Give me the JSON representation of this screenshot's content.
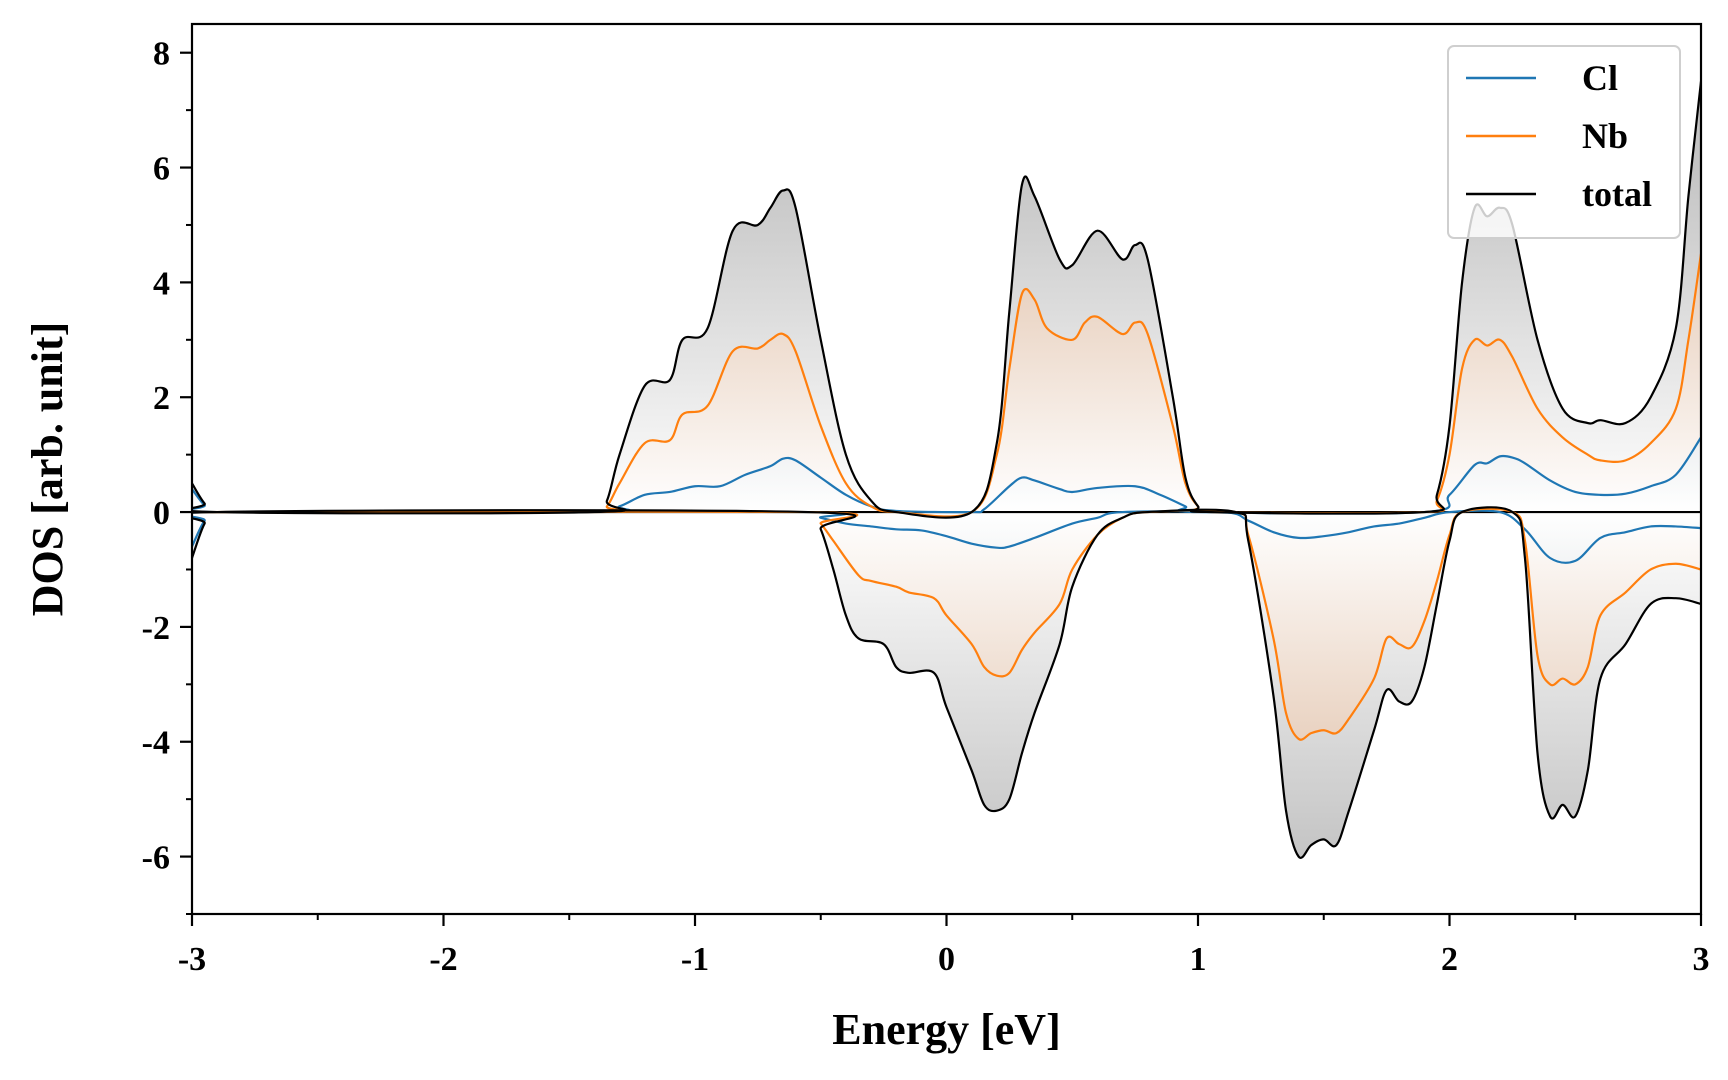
{
  "chart_data": {
    "type": "area",
    "title": "",
    "xlabel": "Energy [eV]",
    "ylabel": "DOS [arb. unit]",
    "xlim": [
      -3,
      3
    ],
    "ylim": [
      -7,
      8.5
    ],
    "x_ticks": [
      -3,
      -2,
      -1,
      0,
      1,
      2,
      3
    ],
    "x_tick_labels": [
      "-3",
      "-2",
      "-1",
      "0",
      "1",
      "2",
      "3"
    ],
    "y_ticks": [
      -6,
      -4,
      -2,
      0,
      2,
      4,
      6,
      8
    ],
    "y_tick_labels": [
      "-6",
      "-4",
      "-2",
      "0",
      "2",
      "4",
      "6",
      "8"
    ],
    "legend_position": "top-right",
    "grid": false,
    "series": [
      {
        "name": "Cl",
        "color": "#1f77b4",
        "up": [
          [
            -3.0,
            0.4
          ],
          [
            -2.95,
            0.12
          ],
          [
            -2.9,
            0.0
          ],
          [
            -1.4,
            0.0
          ],
          [
            -1.3,
            0.1
          ],
          [
            -1.2,
            0.3
          ],
          [
            -1.1,
            0.35
          ],
          [
            -1.0,
            0.45
          ],
          [
            -0.9,
            0.45
          ],
          [
            -0.8,
            0.65
          ],
          [
            -0.7,
            0.8
          ],
          [
            -0.65,
            0.93
          ],
          [
            -0.6,
            0.9
          ],
          [
            -0.5,
            0.6
          ],
          [
            -0.4,
            0.3
          ],
          [
            -0.3,
            0.1
          ],
          [
            -0.2,
            0.02
          ],
          [
            0.1,
            0.0
          ],
          [
            0.15,
            0.05
          ],
          [
            0.25,
            0.45
          ],
          [
            0.3,
            0.6
          ],
          [
            0.35,
            0.55
          ],
          [
            0.45,
            0.4
          ],
          [
            0.5,
            0.35
          ],
          [
            0.6,
            0.42
          ],
          [
            0.75,
            0.45
          ],
          [
            0.85,
            0.3
          ],
          [
            0.95,
            0.1
          ],
          [
            1.0,
            0.0
          ],
          [
            1.9,
            0.0
          ],
          [
            2.0,
            0.3
          ],
          [
            2.1,
            0.82
          ],
          [
            2.15,
            0.85
          ],
          [
            2.2,
            0.97
          ],
          [
            2.25,
            0.95
          ],
          [
            2.3,
            0.85
          ],
          [
            2.4,
            0.55
          ],
          [
            2.5,
            0.35
          ],
          [
            2.6,
            0.3
          ],
          [
            2.7,
            0.32
          ],
          [
            2.8,
            0.45
          ],
          [
            2.9,
            0.65
          ],
          [
            3.0,
            1.3
          ]
        ],
        "down": [
          [
            -3.0,
            -0.6
          ],
          [
            -2.95,
            -0.15
          ],
          [
            -2.9,
            0.0
          ],
          [
            -0.6,
            0.0
          ],
          [
            -0.5,
            -0.1
          ],
          [
            -0.4,
            -0.2
          ],
          [
            -0.3,
            -0.25
          ],
          [
            -0.2,
            -0.3
          ],
          [
            -0.1,
            -0.32
          ],
          [
            0.0,
            -0.42
          ],
          [
            0.1,
            -0.55
          ],
          [
            0.2,
            -0.62
          ],
          [
            0.25,
            -0.6
          ],
          [
            0.35,
            -0.45
          ],
          [
            0.5,
            -0.2
          ],
          [
            0.6,
            -0.1
          ],
          [
            0.7,
            0.0
          ],
          [
            1.1,
            0.0
          ],
          [
            1.2,
            -0.15
          ],
          [
            1.3,
            -0.35
          ],
          [
            1.4,
            -0.45
          ],
          [
            1.5,
            -0.42
          ],
          [
            1.6,
            -0.35
          ],
          [
            1.7,
            -0.25
          ],
          [
            1.8,
            -0.2
          ],
          [
            1.9,
            -0.1
          ],
          [
            2.0,
            0.0
          ],
          [
            2.2,
            0.0
          ],
          [
            2.3,
            -0.3
          ],
          [
            2.4,
            -0.8
          ],
          [
            2.5,
            -0.85
          ],
          [
            2.6,
            -0.45
          ],
          [
            2.7,
            -0.35
          ],
          [
            2.8,
            -0.25
          ],
          [
            2.9,
            -0.25
          ],
          [
            3.0,
            -0.28
          ]
        ]
      },
      {
        "name": "Nb",
        "color": "#ff7f0e",
        "up": [
          [
            -3.0,
            0.0
          ],
          [
            -1.4,
            0.0
          ],
          [
            -1.35,
            0.1
          ],
          [
            -1.3,
            0.5
          ],
          [
            -1.2,
            1.2
          ],
          [
            -1.1,
            1.25
          ],
          [
            -1.05,
            1.7
          ],
          [
            -0.95,
            1.85
          ],
          [
            -0.85,
            2.8
          ],
          [
            -0.75,
            2.85
          ],
          [
            -0.7,
            3.0
          ],
          [
            -0.65,
            3.1
          ],
          [
            -0.6,
            2.8
          ],
          [
            -0.5,
            1.5
          ],
          [
            -0.4,
            0.5
          ],
          [
            -0.3,
            0.1
          ],
          [
            -0.2,
            0.0
          ],
          [
            0.1,
            0.0
          ],
          [
            0.2,
            1.0
          ],
          [
            0.25,
            2.5
          ],
          [
            0.3,
            3.8
          ],
          [
            0.35,
            3.7
          ],
          [
            0.4,
            3.2
          ],
          [
            0.5,
            3.0
          ],
          [
            0.55,
            3.3
          ],
          [
            0.6,
            3.4
          ],
          [
            0.7,
            3.1
          ],
          [
            0.75,
            3.3
          ],
          [
            0.8,
            3.1
          ],
          [
            0.9,
            1.5
          ],
          [
            0.95,
            0.5
          ],
          [
            1.0,
            0.1
          ],
          [
            1.05,
            0.0
          ],
          [
            1.9,
            0.0
          ],
          [
            1.95,
            0.2
          ],
          [
            2.0,
            1.0
          ],
          [
            2.05,
            2.5
          ],
          [
            2.1,
            3.0
          ],
          [
            2.15,
            2.9
          ],
          [
            2.2,
            3.0
          ],
          [
            2.25,
            2.7
          ],
          [
            2.35,
            1.8
          ],
          [
            2.45,
            1.3
          ],
          [
            2.55,
            1.0
          ],
          [
            2.6,
            0.9
          ],
          [
            2.7,
            0.9
          ],
          [
            2.8,
            1.2
          ],
          [
            2.9,
            1.8
          ],
          [
            2.95,
            3.0
          ],
          [
            3.0,
            4.5
          ]
        ],
        "down": [
          [
            -3.0,
            0.0
          ],
          [
            -0.55,
            0.0
          ],
          [
            -0.5,
            -0.2
          ],
          [
            -0.45,
            -0.5
          ],
          [
            -0.35,
            -1.1
          ],
          [
            -0.3,
            -1.2
          ],
          [
            -0.2,
            -1.3
          ],
          [
            -0.15,
            -1.4
          ],
          [
            -0.05,
            -1.5
          ],
          [
            0.0,
            -1.8
          ],
          [
            0.1,
            -2.3
          ],
          [
            0.15,
            -2.7
          ],
          [
            0.2,
            -2.85
          ],
          [
            0.25,
            -2.8
          ],
          [
            0.3,
            -2.4
          ],
          [
            0.35,
            -2.1
          ],
          [
            0.45,
            -1.6
          ],
          [
            0.5,
            -1.0
          ],
          [
            0.6,
            -0.4
          ],
          [
            0.7,
            -0.1
          ],
          [
            0.8,
            0.0
          ],
          [
            1.15,
            0.0
          ],
          [
            1.2,
            -0.4
          ],
          [
            1.3,
            -2.2
          ],
          [
            1.35,
            -3.5
          ],
          [
            1.4,
            -3.95
          ],
          [
            1.45,
            -3.85
          ],
          [
            1.5,
            -3.8
          ],
          [
            1.55,
            -3.85
          ],
          [
            1.6,
            -3.6
          ],
          [
            1.7,
            -2.9
          ],
          [
            1.75,
            -2.2
          ],
          [
            1.8,
            -2.3
          ],
          [
            1.85,
            -2.35
          ],
          [
            1.9,
            -1.9
          ],
          [
            1.95,
            -1.2
          ],
          [
            2.0,
            -0.4
          ],
          [
            2.05,
            0.0
          ],
          [
            2.25,
            0.0
          ],
          [
            2.3,
            -0.5
          ],
          [
            2.35,
            -2.5
          ],
          [
            2.4,
            -3.0
          ],
          [
            2.45,
            -2.9
          ],
          [
            2.5,
            -3.0
          ],
          [
            2.55,
            -2.7
          ],
          [
            2.6,
            -1.8
          ],
          [
            2.7,
            -1.4
          ],
          [
            2.8,
            -1.0
          ],
          [
            2.9,
            -0.9
          ],
          [
            3.0,
            -1.0
          ]
        ]
      },
      {
        "name": "total",
        "color": "#000000",
        "up": [
          [
            -3.0,
            0.5
          ],
          [
            -2.95,
            0.15
          ],
          [
            -2.9,
            0.0
          ],
          [
            -1.4,
            0.0
          ],
          [
            -1.35,
            0.2
          ],
          [
            -1.3,
            1.0
          ],
          [
            -1.2,
            2.2
          ],
          [
            -1.1,
            2.3
          ],
          [
            -1.05,
            3.0
          ],
          [
            -0.95,
            3.2
          ],
          [
            -0.85,
            4.9
          ],
          [
            -0.75,
            5.0
          ],
          [
            -0.7,
            5.3
          ],
          [
            -0.65,
            5.6
          ],
          [
            -0.6,
            5.3
          ],
          [
            -0.5,
            3.0
          ],
          [
            -0.4,
            1.0
          ],
          [
            -0.3,
            0.2
          ],
          [
            -0.2,
            0.0
          ],
          [
            0.1,
            0.0
          ],
          [
            0.2,
            1.2
          ],
          [
            0.25,
            3.5
          ],
          [
            0.3,
            5.7
          ],
          [
            0.35,
            5.5
          ],
          [
            0.45,
            4.4
          ],
          [
            0.5,
            4.3
          ],
          [
            0.6,
            4.9
          ],
          [
            0.7,
            4.4
          ],
          [
            0.75,
            4.65
          ],
          [
            0.8,
            4.4
          ],
          [
            0.9,
            2.0
          ],
          [
            0.95,
            0.6
          ],
          [
            1.0,
            0.1
          ],
          [
            1.05,
            0.0
          ],
          [
            1.9,
            0.0
          ],
          [
            1.95,
            0.3
          ],
          [
            2.0,
            1.5
          ],
          [
            2.05,
            4.0
          ],
          [
            2.1,
            5.3
          ],
          [
            2.15,
            5.15
          ],
          [
            2.2,
            5.3
          ],
          [
            2.25,
            5.0
          ],
          [
            2.35,
            3.0
          ],
          [
            2.45,
            1.8
          ],
          [
            2.55,
            1.55
          ],
          [
            2.6,
            1.6
          ],
          [
            2.7,
            1.55
          ],
          [
            2.8,
            2.0
          ],
          [
            2.9,
            3.2
          ],
          [
            2.95,
            5.5
          ],
          [
            3.0,
            7.5
          ]
        ],
        "down": [
          [
            -3.0,
            -0.8
          ],
          [
            -2.95,
            -0.2
          ],
          [
            -2.9,
            0.0
          ],
          [
            -0.55,
            0.0
          ],
          [
            -0.5,
            -0.3
          ],
          [
            -0.45,
            -1.0
          ],
          [
            -0.4,
            -1.8
          ],
          [
            -0.35,
            -2.2
          ],
          [
            -0.25,
            -2.3
          ],
          [
            -0.2,
            -2.7
          ],
          [
            -0.15,
            -2.8
          ],
          [
            -0.05,
            -2.8
          ],
          [
            0.0,
            -3.4
          ],
          [
            0.1,
            -4.5
          ],
          [
            0.15,
            -5.1
          ],
          [
            0.2,
            -5.2
          ],
          [
            0.25,
            -5.0
          ],
          [
            0.3,
            -4.2
          ],
          [
            0.35,
            -3.5
          ],
          [
            0.45,
            -2.3
          ],
          [
            0.5,
            -1.3
          ],
          [
            0.6,
            -0.4
          ],
          [
            0.7,
            -0.1
          ],
          [
            0.8,
            0.0
          ],
          [
            1.15,
            0.0
          ],
          [
            1.2,
            -0.5
          ],
          [
            1.3,
            -3.2
          ],
          [
            1.35,
            -5.2
          ],
          [
            1.4,
            -6.0
          ],
          [
            1.45,
            -5.8
          ],
          [
            1.5,
            -5.7
          ],
          [
            1.55,
            -5.8
          ],
          [
            1.6,
            -5.2
          ],
          [
            1.7,
            -3.8
          ],
          [
            1.75,
            -3.1
          ],
          [
            1.8,
            -3.3
          ],
          [
            1.85,
            -3.3
          ],
          [
            1.9,
            -2.7
          ],
          [
            1.95,
            -1.6
          ],
          [
            2.0,
            -0.5
          ],
          [
            2.05,
            0.0
          ],
          [
            2.25,
            0.0
          ],
          [
            2.3,
            -0.8
          ],
          [
            2.35,
            -4.2
          ],
          [
            2.4,
            -5.3
          ],
          [
            2.45,
            -5.1
          ],
          [
            2.5,
            -5.3
          ],
          [
            2.55,
            -4.5
          ],
          [
            2.6,
            -2.9
          ],
          [
            2.7,
            -2.3
          ],
          [
            2.8,
            -1.6
          ],
          [
            2.9,
            -1.5
          ],
          [
            3.0,
            -1.6
          ]
        ]
      }
    ]
  }
}
